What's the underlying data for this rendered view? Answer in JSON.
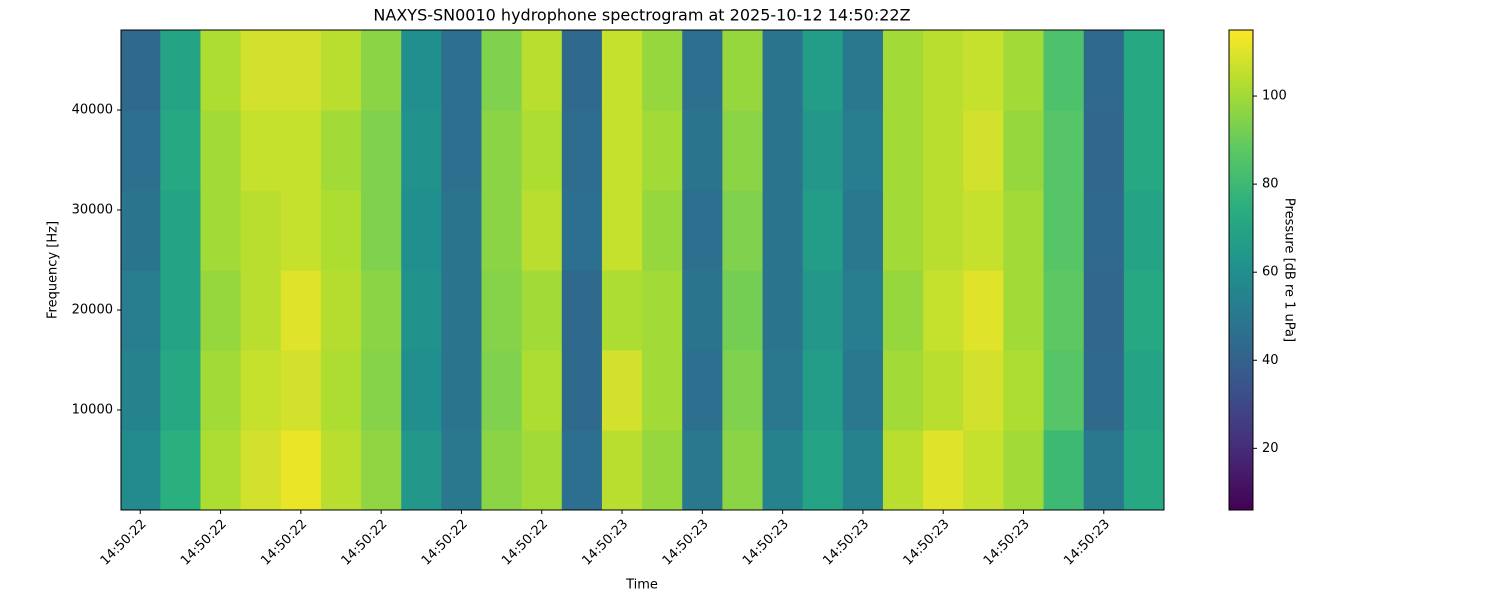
{
  "chart_data": {
    "type": "heatmap",
    "title": "NAXYS-SN0010 hydrophone spectrogram at 2025-10-12 14:50:22Z",
    "x_label": "Time",
    "y_label": "Frequency [Hz]",
    "colorbar_label": "Pressure [dB re 1 uPa]",
    "colormap": "viridis",
    "x": [
      "14:50:22.40",
      "14:50:22.45",
      "14:50:22.50",
      "14:50:22.55",
      "14:50:22.60",
      "14:50:22.65",
      "14:50:22.70",
      "14:50:22.75",
      "14:50:22.80",
      "14:50:22.85",
      "14:50:22.90",
      "14:50:22.95",
      "14:50:23.00",
      "14:50:23.05",
      "14:50:23.10",
      "14:50:23.15",
      "14:50:23.20",
      "14:50:23.25",
      "14:50:23.30",
      "14:50:23.35",
      "14:50:23.40",
      "14:50:23.45",
      "14:50:23.50",
      "14:50:23.55",
      "14:50:23.60",
      "14:50:23.65"
    ],
    "y": [
      4000,
      12000,
      20000,
      28000,
      36000,
      44000
    ],
    "z": [
      [
        58,
        75,
        102,
        108,
        112,
        104,
        97,
        64,
        50,
        96,
        100,
        46,
        104,
        98,
        50,
        96,
        55,
        70,
        55,
        104,
        110,
        106,
        100,
        80,
        50,
        72
      ],
      [
        55,
        72,
        100,
        106,
        108,
        102,
        95,
        60,
        48,
        94,
        102,
        44,
        108,
        100,
        46,
        94,
        50,
        66,
        50,
        100,
        104,
        108,
        102,
        86,
        44,
        70
      ],
      [
        52,
        70,
        98,
        104,
        110,
        103,
        96,
        62,
        48,
        95,
        100,
        44,
        102,
        100,
        48,
        92,
        48,
        64,
        52,
        98,
        106,
        110,
        100,
        88,
        42,
        72
      ],
      [
        48,
        70,
        100,
        104,
        106,
        102,
        94,
        60,
        48,
        96,
        104,
        46,
        106,
        98,
        46,
        94,
        48,
        66,
        50,
        100,
        104,
        106,
        100,
        86,
        44,
        70
      ],
      [
        46,
        72,
        100,
        106,
        106,
        100,
        94,
        62,
        46,
        96,
        102,
        45,
        106,
        100,
        48,
        96,
        48,
        64,
        52,
        100,
        104,
        108,
        98,
        86,
        42,
        72
      ],
      [
        44,
        70,
        102,
        108,
        108,
        104,
        96,
        60,
        46,
        94,
        104,
        44,
        106,
        98,
        46,
        98,
        48,
        66,
        50,
        100,
        104,
        106,
        100,
        84,
        44,
        72
      ]
    ],
    "xlim": [
      "14:50:22.376",
      "14:50:23.675"
    ],
    "xticks": [
      {
        "value": "14:50:22.4",
        "label": "14:50:22"
      },
      {
        "value": "14:50:22.5",
        "label": "14:50:22"
      },
      {
        "value": "14:50:22.6",
        "label": "14:50:22"
      },
      {
        "value": "14:50:22.7",
        "label": "14:50:22"
      },
      {
        "value": "14:50:22.8",
        "label": "14:50:22"
      },
      {
        "value": "14:50:22.9",
        "label": "14:50:22"
      },
      {
        "value": "14:50:23.0",
        "label": "14:50:23"
      },
      {
        "value": "14:50:23.1",
        "label": "14:50:23"
      },
      {
        "value": "14:50:23.2",
        "label": "14:50:23"
      },
      {
        "value": "14:50:23.3",
        "label": "14:50:23"
      },
      {
        "value": "14:50:23.4",
        "label": "14:50:23"
      },
      {
        "value": "14:50:23.5",
        "label": "14:50:23"
      },
      {
        "value": "14:50:23.6",
        "label": "14:50:23"
      }
    ],
    "ylim": [
      0,
      48000
    ],
    "yticks": [
      10000,
      20000,
      30000,
      40000
    ],
    "clim": [
      6,
      115
    ],
    "cticks": [
      20,
      40,
      60,
      80,
      100
    ]
  }
}
